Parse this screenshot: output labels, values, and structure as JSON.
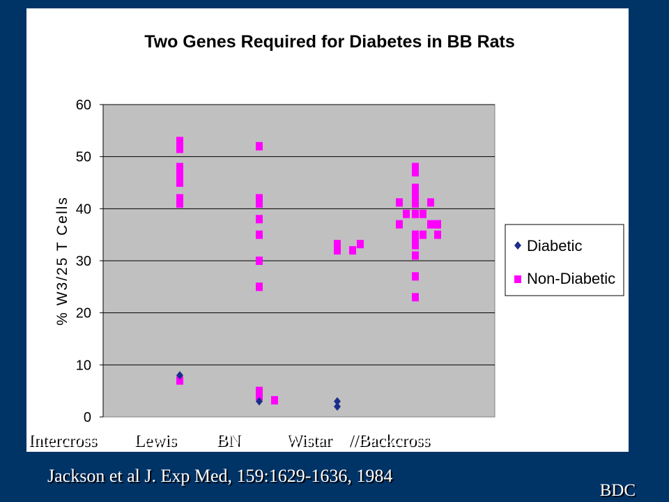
{
  "chart_data": {
    "type": "scatter",
    "title": "Two Genes Required for Diabetes in BB Rats",
    "ylabel": "% W3/25 T Cells",
    "ylim": [
      0,
      60
    ],
    "yticks": [
      0,
      10,
      20,
      30,
      40,
      50,
      60
    ],
    "grid": true,
    "legend_position": "right",
    "categories": [
      "Intercross",
      "Lewis",
      "BN",
      "Wistar",
      "//Backcross"
    ],
    "series": [
      {
        "name": "Diabetic",
        "color": "#1c2d8c",
        "marker": "diamond",
        "points": [
          {
            "x": "Lewis",
            "y": 8
          },
          {
            "x": "BN",
            "y": 3
          },
          {
            "x": "Wistar",
            "y": 3
          },
          {
            "x": "Wistar",
            "y": 2
          }
        ]
      },
      {
        "name": "Non-Diabetic",
        "color": "#ff00ff",
        "marker": "square",
        "points": [
          {
            "x": "Lewis",
            "y": 53
          },
          {
            "x": "Lewis",
            "y": 51.5
          },
          {
            "x": "Lewis",
            "y": 48
          },
          {
            "x": "Lewis",
            "y": 46.5
          },
          {
            "x": "Lewis",
            "y": 45
          },
          {
            "x": "Lewis",
            "y": 42
          },
          {
            "x": "Lewis",
            "y": 41
          },
          {
            "x": "Lewis",
            "y": 7
          },
          {
            "x": "BN",
            "y": 52
          },
          {
            "x": "BN",
            "y": 42
          },
          {
            "x": "BN",
            "y": 41
          },
          {
            "x": "BN",
            "y": 38
          },
          {
            "x": "BN",
            "y": 35
          },
          {
            "x": "BN",
            "y": 30
          },
          {
            "x": "BN",
            "y": 25
          },
          {
            "x": "BN",
            "y": 5
          },
          {
            "x": "BN",
            "y": 4
          },
          {
            "x": "BN",
            "y": 3.2
          },
          {
            "x": "Wistar",
            "y": 33.2
          },
          {
            "x": "Wistar",
            "y": 32
          },
          {
            "x": "Wistar",
            "y": 32
          },
          {
            "x": "Wistar",
            "y": 33.2
          },
          {
            "x": "//Backcross",
            "y": 41.2
          },
          {
            "x": "//Backcross",
            "y": 37
          },
          {
            "x": "//Backcross",
            "y": 39
          },
          {
            "x": "//Backcross",
            "y": 48
          },
          {
            "x": "//Backcross",
            "y": 47
          },
          {
            "x": "//Backcross",
            "y": 44
          },
          {
            "x": "//Backcross",
            "y": 42.5
          },
          {
            "x": "//Backcross",
            "y": 41
          },
          {
            "x": "//Backcross",
            "y": 39
          },
          {
            "x": "//Backcross",
            "y": 35
          },
          {
            "x": "//Backcross",
            "y": 34
          },
          {
            "x": "//Backcross",
            "y": 33
          },
          {
            "x": "//Backcross",
            "y": 31
          },
          {
            "x": "//Backcross",
            "y": 27
          },
          {
            "x": "//Backcross",
            "y": 23
          },
          {
            "x": "//Backcross",
            "y": 39
          },
          {
            "x": "//Backcross",
            "y": 35
          },
          {
            "x": "//Backcross",
            "y": 41.2
          },
          {
            "x": "//Backcross",
            "y": 37
          },
          {
            "x": "//Backcross",
            "y": 37
          },
          {
            "x": "//Backcross",
            "y": 37
          },
          {
            "x": "//Backcross",
            "y": 35
          }
        ]
      }
    ]
  },
  "footer": {
    "citation": "Jackson et al J. Exp Med, 159:1629-1636, 1984",
    "org": "BDC"
  }
}
